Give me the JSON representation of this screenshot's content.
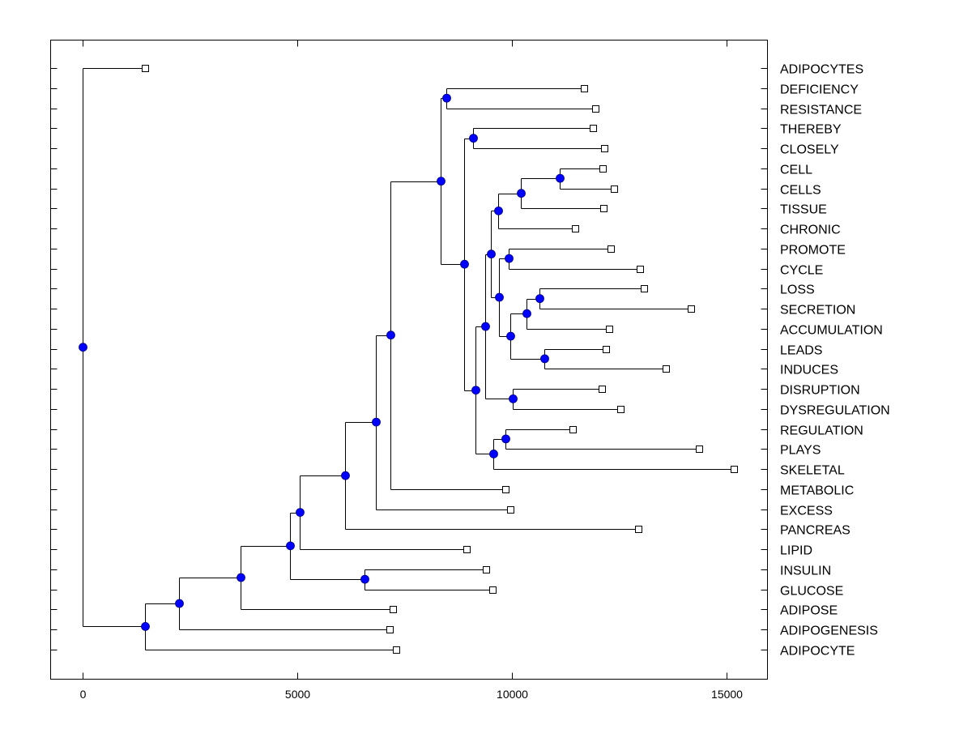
{
  "chart_data": {
    "type": "dendrogram",
    "title": "",
    "xlabel": "",
    "ylabel": "",
    "xlim": [
      -750,
      15950
    ],
    "xticks": [
      0,
      5000,
      10000,
      15000
    ],
    "xtick_labels": [
      "0",
      "5000",
      "10000",
      "15000"
    ],
    "grid": false,
    "legend": "none",
    "colors": {
      "node": "#0000ff",
      "node_outline": "#000080",
      "line": "#000000",
      "leaf_fill": "#ffffff"
    },
    "leaves": [
      {
        "label": "ADIPOCYTES",
        "value": 1453
      },
      {
        "label": "DEFICIENCY",
        "value": 11679
      },
      {
        "label": "RESISTANCE",
        "value": 11943
      },
      {
        "label": "THEREBY",
        "value": 11887
      },
      {
        "label": "CLOSELY",
        "value": 12151
      },
      {
        "label": "CELL",
        "value": 12113
      },
      {
        "label": "CELLS",
        "value": 12377
      },
      {
        "label": "TISSUE",
        "value": 12132
      },
      {
        "label": "CHRONIC",
        "value": 11472
      },
      {
        "label": "PROMOTE",
        "value": 12302
      },
      {
        "label": "CYCLE",
        "value": 12981
      },
      {
        "label": "LOSS",
        "value": 13075
      },
      {
        "label": "SECRETION",
        "value": 14170
      },
      {
        "label": "ACCUMULATION",
        "value": 12264
      },
      {
        "label": "LEADS",
        "value": 12189
      },
      {
        "label": "INDUCES",
        "value": 13585
      },
      {
        "label": "DISRUPTION",
        "value": 12094
      },
      {
        "label": "DYSREGULATION",
        "value": 12528
      },
      {
        "label": "REGULATION",
        "value": 11415
      },
      {
        "label": "PLAYS",
        "value": 14358
      },
      {
        "label": "SKELETAL",
        "value": 15170
      },
      {
        "label": "METABOLIC",
        "value": 9849
      },
      {
        "label": "EXCESS",
        "value": 9962
      },
      {
        "label": "PANCREAS",
        "value": 12943
      },
      {
        "label": "LIPID",
        "value": 8943
      },
      {
        "label": "INSULIN",
        "value": 9396
      },
      {
        "label": "GLUCOSE",
        "value": 9547
      },
      {
        "label": "ADIPOSE",
        "value": 7226
      },
      {
        "label": "ADIPOGENESIS",
        "value": 7151
      },
      {
        "label": "ADIPOCYTE",
        "value": 7302
      }
    ],
    "tree": {
      "value": 0,
      "children": [
        {
          "leaf": 0
        },
        {
          "value": 1453,
          "children": [
            {
              "value": 2245,
              "children": [
                {
                  "value": 3679,
                  "children": [
                    {
                      "value": 4830,
                      "children": [
                        {
                          "value": 5057,
                          "children": [
                            {
                              "value": 6113,
                              "children": [
                                {
                                  "value": 6830,
                                  "children": [
                                    {
                                      "value": 7170,
                                      "children": [
                                        {
                                          "value": 8340,
                                          "children": [
                                            {
                                              "value": 8472,
                                              "children": [
                                                {
                                                  "leaf": 1
                                                },
                                                {
                                                  "leaf": 2
                                                }
                                              ]
                                            },
                                            {
                                              "value": 8887,
                                              "children": [
                                                {
                                                  "value": 9094,
                                                  "children": [
                                                    {
                                                      "leaf": 3
                                                    },
                                                    {
                                                      "leaf": 4
                                                    }
                                                  ]
                                                },
                                                {
                                                  "value": 9151,
                                                  "children": [
                                                    {
                                                      "value": 9377,
                                                      "children": [
                                                        {
                                                          "value": 9509,
                                                          "children": [
                                                            {
                                                              "value": 9679,
                                                              "children": [
                                                                {
                                                                  "value": 10208,
                                                                  "children": [
                                                                    {
                                                                      "value": 11113,
                                                                      "children": [
                                                                        {
                                                                          "leaf": 5
                                                                        },
                                                                        {
                                                                          "leaf": 6
                                                                        }
                                                                      ]
                                                                    },
                                                                    {
                                                                      "leaf": 7
                                                                    }
                                                                  ]
                                                                },
                                                                {
                                                                  "leaf": 8
                                                                }
                                                              ]
                                                            },
                                                            {
                                                              "value": 9698,
                                                              "children": [
                                                                {
                                                                  "value": 9925,
                                                                  "children": [
                                                                    {
                                                                      "leaf": 9
                                                                    },
                                                                    {
                                                                      "leaf": 10
                                                                    }
                                                                  ]
                                                                },
                                                                {
                                                                  "value": 9962,
                                                                  "children": [
                                                                    {
                                                                      "value": 10340,
                                                                      "children": [
                                                                        {
                                                                          "value": 10642,
                                                                          "children": [
                                                                            {
                                                                              "leaf": 11
                                                                            },
                                                                            {
                                                                              "leaf": 12
                                                                            }
                                                                          ]
                                                                        },
                                                                        {
                                                                          "leaf": 13
                                                                        }
                                                                      ]
                                                                    },
                                                                    {
                                                                      "value": 10755,
                                                                      "children": [
                                                                        {
                                                                          "leaf": 14
                                                                        },
                                                                        {
                                                                          "leaf": 15
                                                                        }
                                                                      ]
                                                                    }
                                                                  ]
                                                                }
                                                              ]
                                                            }
                                                          ]
                                                        },
                                                        {
                                                          "value": 10019,
                                                          "children": [
                                                            {
                                                              "leaf": 16
                                                            },
                                                            {
                                                              "leaf": 17
                                                            }
                                                          ]
                                                        }
                                                      ]
                                                    },
                                                    {
                                                      "value": 9566,
                                                      "children": [
                                                        {
                                                          "value": 9849,
                                                          "children": [
                                                            {
                                                              "leaf": 18
                                                            },
                                                            {
                                                              "leaf": 19
                                                            }
                                                          ]
                                                        },
                                                        {
                                                          "leaf": 20
                                                        }
                                                      ]
                                                    }
                                                  ]
                                                }
                                              ]
                                            }
                                          ]
                                        },
                                        {
                                          "leaf": 21
                                        }
                                      ]
                                    },
                                    {
                                      "leaf": 22
                                    }
                                  ]
                                },
                                {
                                  "leaf": 23
                                }
                              ]
                            },
                            {
                              "leaf": 24
                            }
                          ]
                        },
                        {
                          "value": 6566,
                          "children": [
                            {
                              "leaf": 25
                            },
                            {
                              "leaf": 26
                            }
                          ]
                        }
                      ]
                    },
                    {
                      "leaf": 27
                    }
                  ]
                },
                {
                  "leaf": 28
                }
              ]
            },
            {
              "leaf": 29
            }
          ]
        }
      ]
    }
  }
}
